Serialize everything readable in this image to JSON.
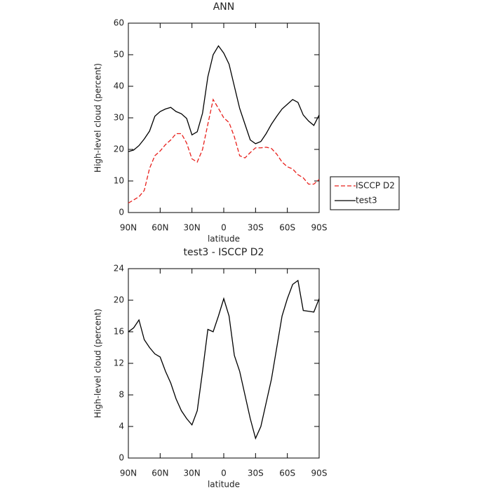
{
  "chart_data": [
    {
      "type": "line",
      "title": "ANN",
      "x_label": "latitude",
      "y_label": "High-level cloud (percent)",
      "x": [
        90,
        85,
        80,
        75,
        70,
        65,
        60,
        55,
        50,
        45,
        40,
        35,
        30,
        25,
        20,
        15,
        10,
        5,
        0,
        -5,
        -10,
        -15,
        -20,
        -25,
        -30,
        -35,
        -40,
        -45,
        -50,
        -55,
        -60,
        -65,
        -70,
        -75,
        -80,
        -85,
        -90
      ],
      "series": [
        {
          "name": "ISCCP D2",
          "color": "#e8201c",
          "dash": true,
          "values": [
            3,
            4,
            5,
            7,
            14,
            18,
            19.5,
            21.5,
            23,
            25,
            25,
            22,
            17,
            16,
            20,
            28,
            35.8,
            33,
            30,
            28.5,
            24,
            18,
            17.3,
            19,
            20.5,
            20.5,
            20.7,
            20.3,
            18.5,
            16,
            14.5,
            13.8,
            12,
            11,
            9,
            9,
            10.5
          ]
        },
        {
          "name": "test3",
          "color": "#000000",
          "dash": false,
          "values": [
            19.3,
            19.8,
            21.2,
            23.3,
            25.8,
            30.5,
            32,
            32.8,
            33.3,
            32,
            31.3,
            29.8,
            24.6,
            25.6,
            31.5,
            43,
            50,
            52.8,
            50.5,
            47,
            40,
            33,
            28,
            23,
            21.8,
            22.5,
            25,
            28,
            30.5,
            32.8,
            34.3,
            35.8,
            34.9,
            30.9,
            29,
            27.6,
            30.9
          ]
        }
      ],
      "xlim": [
        90,
        -90
      ],
      "xticks": [
        {
          "value": 90,
          "label": "90N"
        },
        {
          "value": 60,
          "label": "60N"
        },
        {
          "value": 30,
          "label": "30N"
        },
        0,
        {
          "value": -30,
          "label": "30S"
        },
        {
          "value": -60,
          "label": "60S"
        },
        {
          "value": -90,
          "label": "90S"
        }
      ],
      "ylim": [
        0,
        60
      ],
      "yticks": [
        0,
        10,
        20,
        30,
        40,
        50,
        60
      ],
      "legend": "right"
    },
    {
      "type": "line",
      "title": "test3 - ISCCP D2",
      "x_label": "latitude",
      "y_label": "High-level cloud (percent)",
      "x": [
        90,
        85,
        80,
        75,
        70,
        65,
        60,
        55,
        50,
        45,
        40,
        35,
        30,
        25,
        20,
        15,
        10,
        5,
        0,
        -5,
        -10,
        -15,
        -20,
        -25,
        -30,
        -35,
        -40,
        -45,
        -50,
        -55,
        -60,
        -65,
        -70,
        -75,
        -80,
        -85,
        -90
      ],
      "color": "#000000",
      "values": [
        16,
        16.5,
        17.5,
        15,
        14,
        13.2,
        12.8,
        11,
        9.5,
        7.5,
        6,
        5,
        4.2,
        6,
        11,
        16.3,
        16,
        18,
        20.2,
        18,
        13,
        11,
        8,
        5,
        2.5,
        4,
        7,
        10,
        14,
        18,
        20.2,
        22,
        22.5,
        18.7,
        18.6,
        18.5,
        20.2
      ],
      "xlim": [
        90,
        -90
      ],
      "xticks": [
        {
          "value": 90,
          "label": "90N"
        },
        {
          "value": 60,
          "label": "60N"
        },
        {
          "value": 30,
          "label": "30N"
        },
        0,
        {
          "value": -30,
          "label": "30S"
        },
        {
          "value": -60,
          "label": "60S"
        },
        {
          "value": -90,
          "label": "90S"
        }
      ],
      "ylim": [
        0,
        24
      ],
      "yticks": [
        0,
        4,
        8,
        12,
        16,
        20,
        24
      ]
    }
  ]
}
